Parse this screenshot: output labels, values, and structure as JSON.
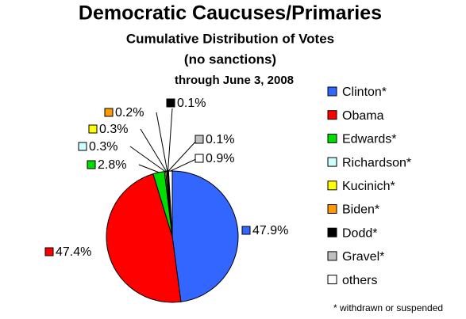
{
  "chart_data": {
    "type": "pie",
    "title": "Democratic Caucuses/Primaries",
    "subtitle": [
      "Cumulative Distribution of Votes",
      "(no sanctions)",
      "through June 3, 2008"
    ],
    "categories": [
      "Clinton*",
      "Obama",
      "Edwards*",
      "Richardson*",
      "Kucinich*",
      "Biden*",
      "Dodd*",
      "Gravel*",
      "others"
    ],
    "values": [
      47.9,
      47.4,
      2.8,
      0.3,
      0.3,
      0.2,
      0.1,
      0.1,
      0.9
    ],
    "value_labels": [
      "47.9%",
      "47.4%",
      "2.8%",
      "0.3%",
      "0.3%",
      "0.2%",
      "0.1%",
      "0.1%",
      "0.9%"
    ],
    "colors": [
      "#3366ff",
      "#ff0000",
      "#00dd00",
      "#ccffff",
      "#ffff00",
      "#ff9900",
      "#000000",
      "#c0c0c0",
      "#ffffff"
    ],
    "legend": "right",
    "note": "* withdrawn or suspended"
  }
}
